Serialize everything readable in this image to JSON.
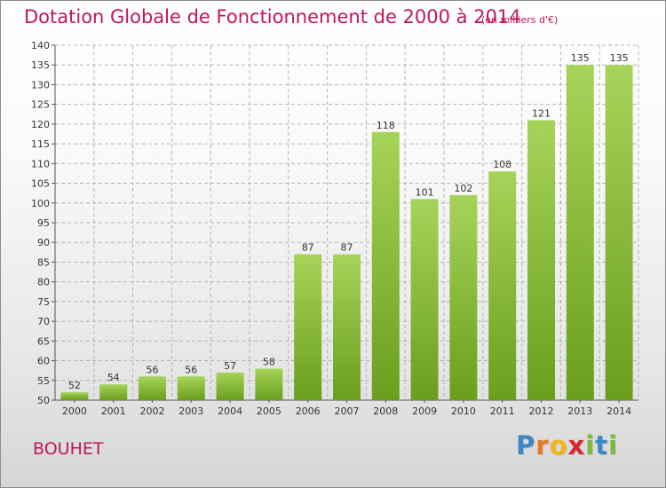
{
  "title": "Dotation Globale de Fonctionnement de 2000 à 2014",
  "subtitle": "(en milliers d'€)",
  "commune": "BOUHET",
  "brand": {
    "letters": [
      "P",
      "r",
      "o",
      "x",
      "i",
      "t",
      "i"
    ],
    "colors": [
      "#3a88c8",
      "#e8791e",
      "#f2b418",
      "#d6282f",
      "#7cb93a",
      "#3a88c8",
      "#7cb93a"
    ]
  },
  "colors": {
    "title": "#c0165c",
    "bar_light": "#a6d45a",
    "bar_dark": "#6a9e1c",
    "grid": "#b4b4b4"
  },
  "chart_data": {
    "type": "bar",
    "title": "Dotation Globale de Fonctionnement de 2000 à 2014",
    "subtitle": "(en milliers d'€)",
    "xlabel": "",
    "ylabel": "",
    "categories": [
      "2000",
      "2001",
      "2002",
      "2003",
      "2004",
      "2005",
      "2006",
      "2007",
      "2008",
      "2009",
      "2010",
      "2011",
      "2012",
      "2013",
      "2014"
    ],
    "values": [
      52,
      54,
      56,
      56,
      57,
      58,
      87,
      87,
      118,
      101,
      102,
      108,
      121,
      135,
      135
    ],
    "ylim": [
      50,
      140
    ],
    "yticks": [
      50,
      55,
      60,
      65,
      70,
      75,
      80,
      85,
      90,
      95,
      100,
      105,
      110,
      115,
      120,
      125,
      130,
      135,
      140
    ],
    "grid": true,
    "grid_style": "dashed",
    "data_labels": true,
    "legend": "none"
  }
}
